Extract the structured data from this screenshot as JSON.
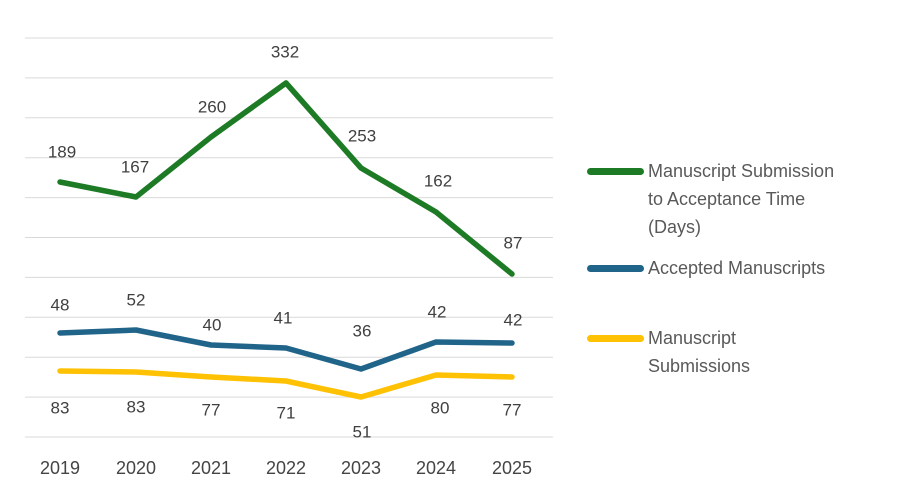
{
  "chart_data": {
    "type": "line",
    "categories": [
      "2019",
      "2020",
      "2021",
      "2022",
      "2023",
      "2024",
      "2025"
    ],
    "series": [
      {
        "name": "Manuscript Submission to Acceptance Time (Days)",
        "color": "#1E7B25",
        "values": [
          189,
          167,
          260,
          332,
          253,
          162,
          87
        ]
      },
      {
        "name": "Accepted Manuscripts",
        "color": "#21648A",
        "values": [
          48,
          52,
          40,
          41,
          36,
          42,
          42
        ]
      },
      {
        "name": "Manuscript Submissions",
        "color": "#FFC103",
        "values": [
          83,
          83,
          77,
          71,
          51,
          80,
          77
        ]
      }
    ],
    "title": "",
    "xlabel": "",
    "ylabel": "",
    "grid": true,
    "gridline_count": 11,
    "legend_position": "right",
    "data_labels": true,
    "axes_labels_visible": false
  },
  "colors": {
    "background": "#FFFFFF",
    "gridline": "#D9D9D9",
    "data_label_text": "#404040",
    "axis_label_text": "#444444",
    "legend_text": "#595959"
  }
}
